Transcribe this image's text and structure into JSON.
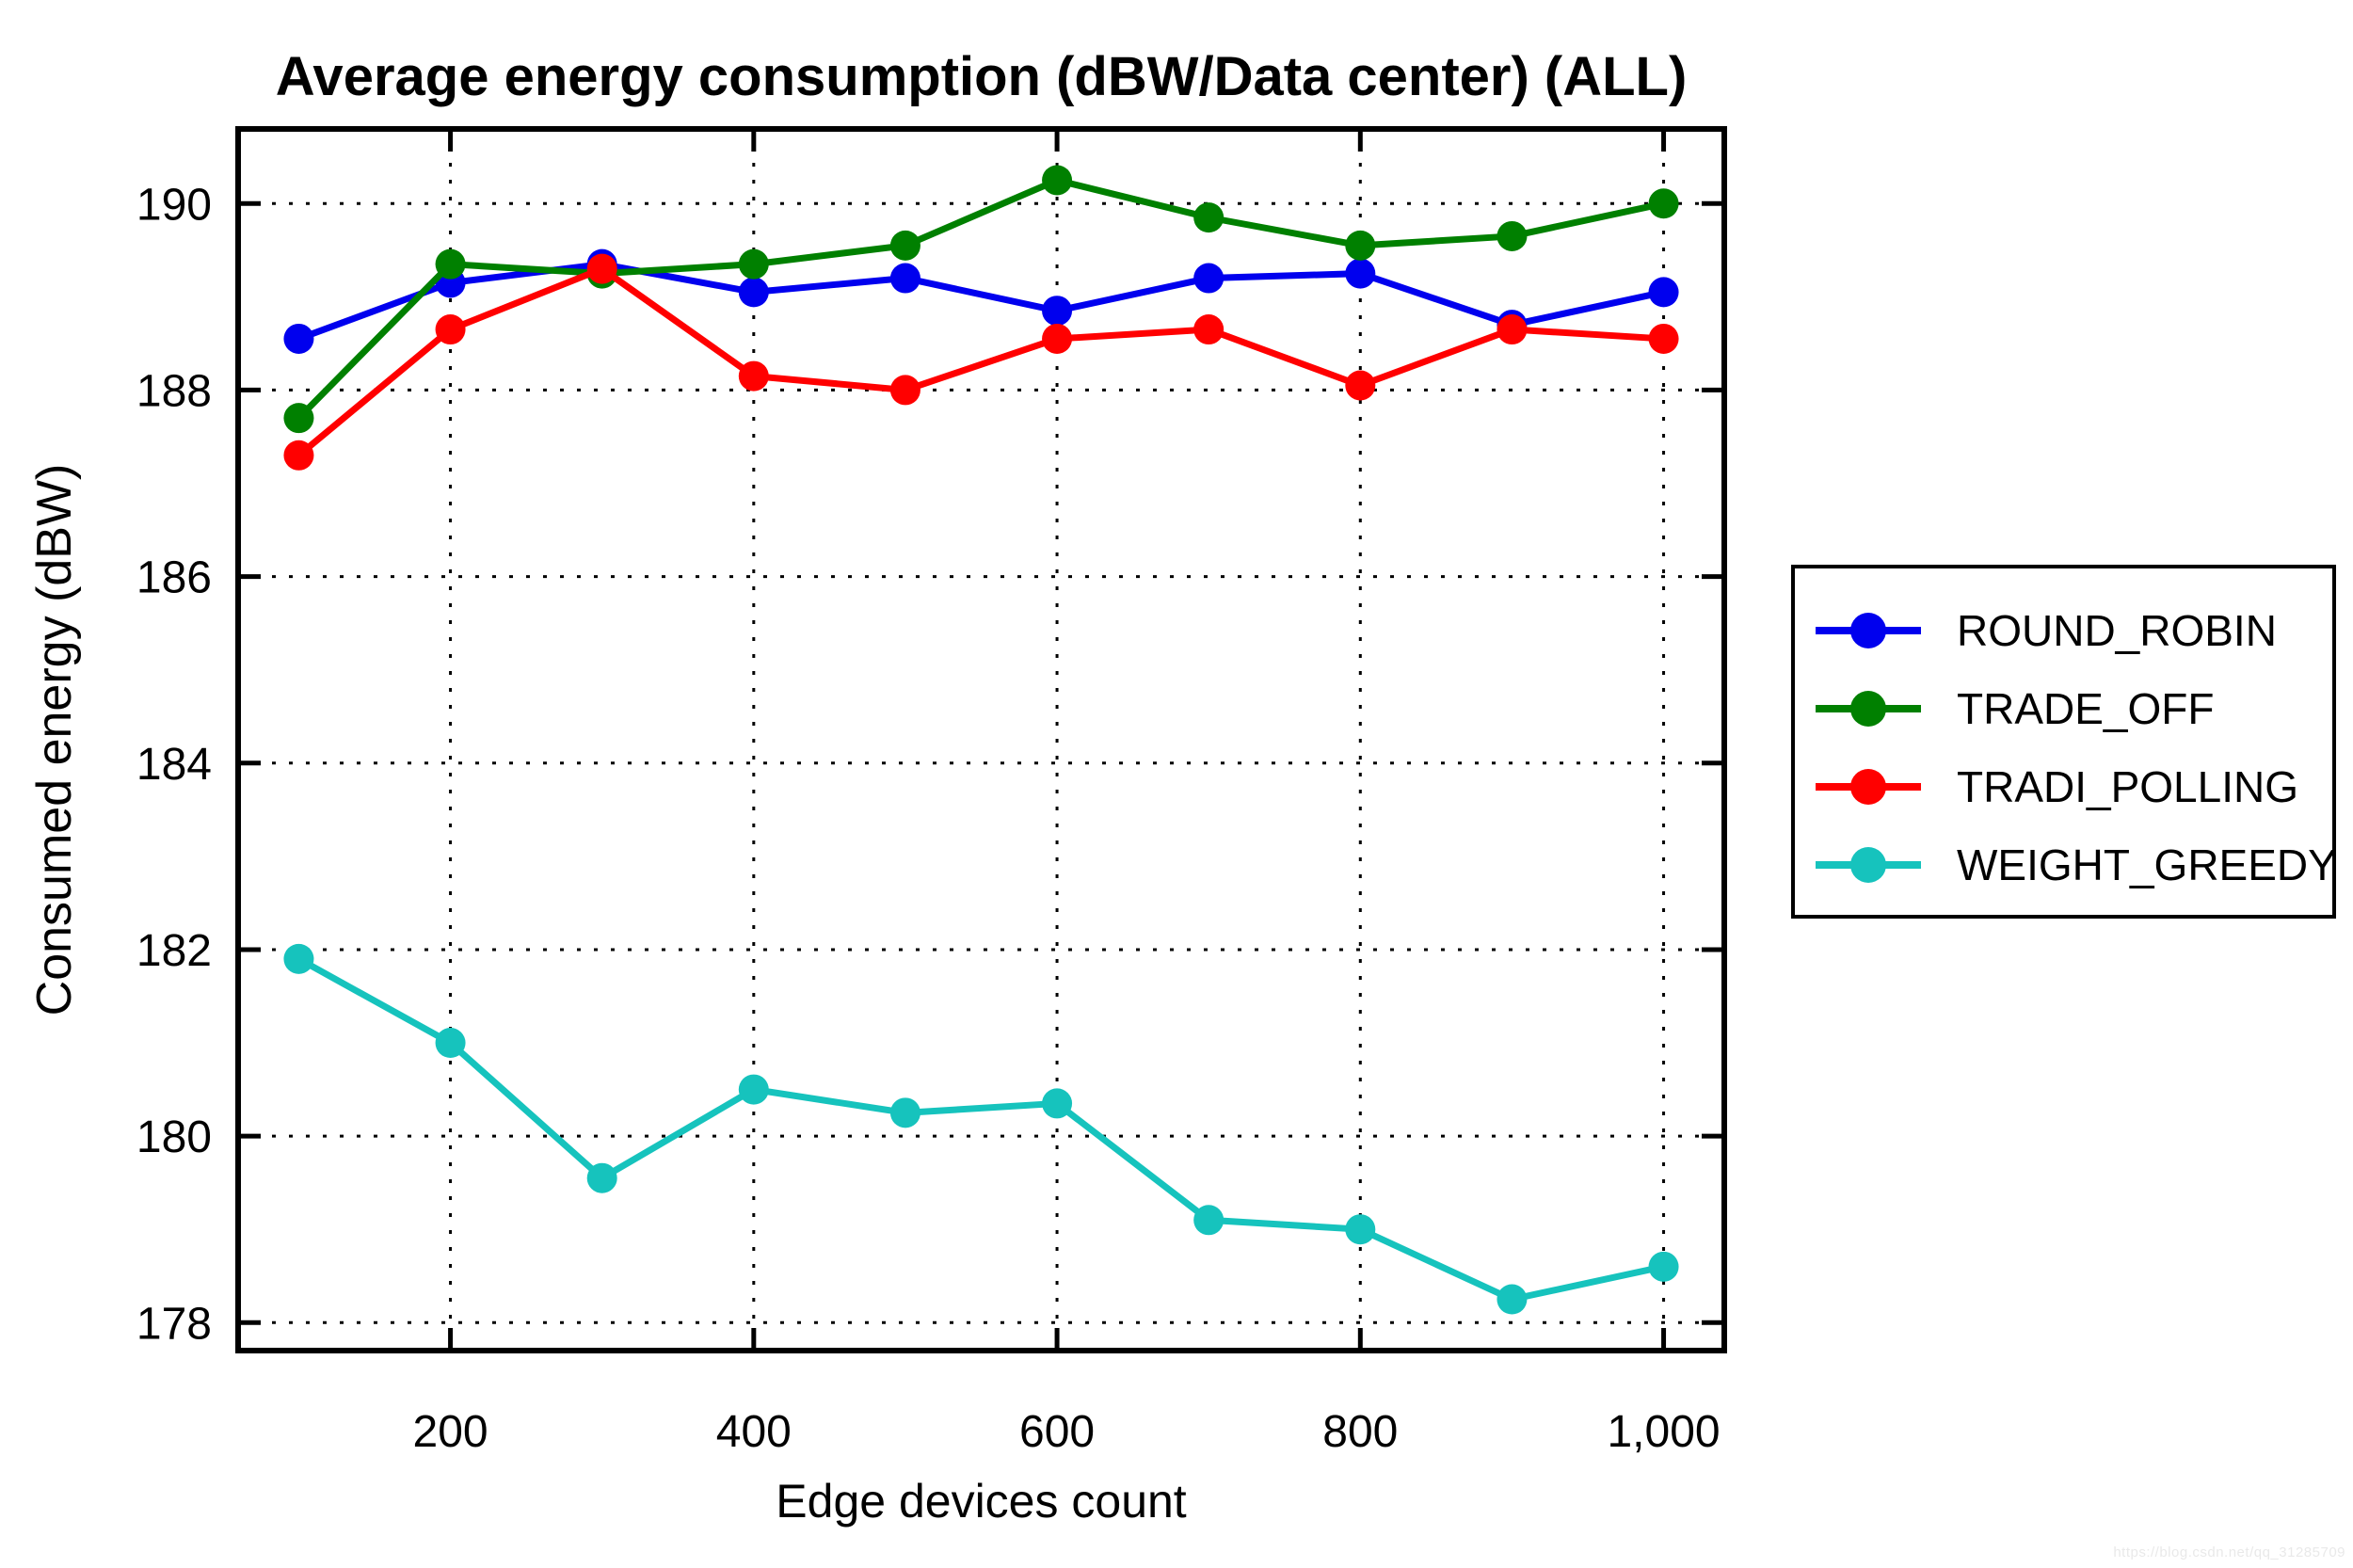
{
  "page": {
    "watermark": "https://blog.csdn.net/qq_31285709"
  },
  "chart_data": {
    "type": "line",
    "title": "Average energy consumption (dBW/Data center) (ALL)",
    "xlabel": "Edge devices count",
    "ylabel": "Consumed energy (dBW)",
    "x": [
      100,
      200,
      300,
      400,
      500,
      600,
      700,
      800,
      900,
      1000
    ],
    "series": [
      {
        "name": "ROUND_ROBIN",
        "color": "#0000ee",
        "values": [
          188.55,
          189.15,
          189.35,
          189.05,
          189.2,
          188.85,
          189.2,
          189.25,
          188.7,
          189.05
        ]
      },
      {
        "name": "TRADE_OFF",
        "color": "#008000",
        "values": [
          187.7,
          189.35,
          189.25,
          189.35,
          189.55,
          190.25,
          189.85,
          189.55,
          189.65,
          190.0
        ]
      },
      {
        "name": "TRADI_POLLING",
        "color": "#ff0000",
        "values": [
          187.3,
          188.65,
          189.3,
          188.15,
          188.0,
          188.55,
          188.65,
          188.05,
          188.65,
          188.55
        ]
      },
      {
        "name": "WEIGHT_GREEDY",
        "color": "#16c3bd",
        "values": [
          181.9,
          181.0,
          179.55,
          180.5,
          180.25,
          180.35,
          179.1,
          179.0,
          178.25,
          178.6
        ]
      }
    ],
    "xlim": [
      60,
      1040
    ],
    "ylim": [
      177.7,
      190.8
    ],
    "xticks": {
      "values": [
        200,
        400,
        600,
        800,
        1000
      ],
      "labels": [
        "200",
        "400",
        "600",
        "800",
        "1,000"
      ]
    },
    "yticks": {
      "values": [
        178,
        180,
        182,
        184,
        186,
        188,
        190
      ],
      "labels": [
        "178",
        "180",
        "182",
        "184",
        "186",
        "188",
        "190"
      ]
    },
    "grid": "dotted",
    "legend_position": "right"
  }
}
